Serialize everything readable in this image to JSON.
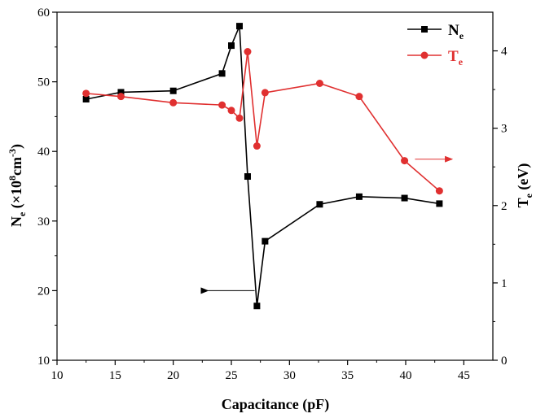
{
  "chart_data": {
    "type": "line",
    "xlabel": "Capacitance (pF)",
    "ylabel": {
      "main": "N",
      "sub": "e",
      "rest_a": " (×10",
      "sup1": "8",
      "rest_b": "cm",
      "sup2": "-3",
      "rest_c": ")"
    },
    "y2label": {
      "main": "T",
      "sub": "e",
      "rest": " (eV)"
    },
    "xlim": [
      10,
      47.5
    ],
    "ylim": [
      10,
      60
    ],
    "y2lim": [
      0,
      4.5
    ],
    "x_ticks": [
      10,
      15,
      20,
      25,
      30,
      35,
      40,
      45
    ],
    "y_ticks": [
      10,
      20,
      30,
      40,
      50,
      60
    ],
    "y2_ticks": [
      0,
      1,
      2,
      3,
      4
    ],
    "legend_position": "top-right",
    "series": [
      {
        "name": "N",
        "name_sub": "e",
        "axis": "left",
        "color": "#000000",
        "marker": "square",
        "x": [
          12.5,
          15.5,
          20.0,
          24.2,
          25.0,
          25.7,
          26.4,
          27.2,
          27.9,
          32.6,
          36.0,
          39.9,
          42.9
        ],
        "y": [
          47.5,
          48.5,
          48.7,
          51.2,
          55.2,
          58.0,
          36.4,
          17.8,
          27.1,
          32.4,
          33.5,
          33.3,
          32.5
        ]
      },
      {
        "name": "T",
        "name_sub": "e",
        "axis": "right",
        "color": "#e03030",
        "marker": "circle",
        "x": [
          12.5,
          15.5,
          20.0,
          24.2,
          25.0,
          25.7,
          26.4,
          27.2,
          27.9,
          32.6,
          36.0,
          39.9,
          42.9
        ],
        "y": [
          3.45,
          3.41,
          3.33,
          3.3,
          3.23,
          3.13,
          3.99,
          2.77,
          3.46,
          3.58,
          3.41,
          2.58,
          2.19
        ]
      }
    ],
    "annotations": [
      {
        "type": "arrow",
        "direction": "left",
        "color": "#000000",
        "x_from": 27.0,
        "x_to": 23.0,
        "y": 20.0,
        "axis": "left"
      },
      {
        "type": "arrow",
        "direction": "right",
        "color": "#e03030",
        "x_from": 40.8,
        "x_to": 44.0,
        "y": 2.6,
        "axis": "right"
      }
    ]
  }
}
